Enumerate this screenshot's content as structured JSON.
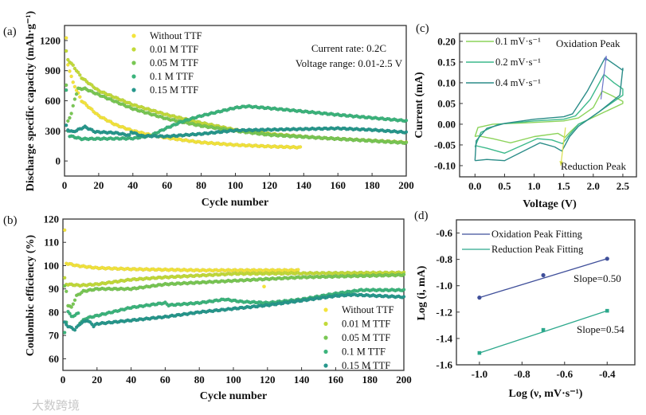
{
  "colors": {
    "without": "#f3e43c",
    "m001": "#c2da3a",
    "m005": "#79c754",
    "m01": "#3cb47c",
    "m015": "#27978c",
    "cv01": "#8cd35a",
    "cv02": "#3cb98b",
    "cv04": "#2a8c88",
    "ox": "#3f4f9a",
    "red": "#2ca88c",
    "ox_arrow": "#6a74c8",
    "red_arrow": "#d8e04a"
  },
  "watermark": "大数跨境",
  "chart_data": [
    {
      "panel_label": "(a)",
      "type": "scatter",
      "title": "",
      "xlabel": "Cycle number",
      "ylabel": "Discharge specific capacity (mAh·g⁻¹)",
      "xlim": [
        0,
        200
      ],
      "ylim": [
        -150,
        1350
      ],
      "xticks": [
        0,
        20,
        40,
        60,
        80,
        100,
        120,
        140,
        160,
        180,
        200
      ],
      "yticks": [
        0,
        300,
        600,
        900,
        1200
      ],
      "legend_position": "top-left",
      "annotations": [
        "Current rate: 0.2C",
        "Voltage range: 0.01-2.5 V"
      ],
      "series": [
        {
          "name": "Without TTF",
          "color_key": "without",
          "points": [
            [
              1,
              1220
            ],
            [
              2,
              960
            ],
            [
              5,
              780
            ],
            [
              10,
              600
            ],
            [
              20,
              450
            ],
            [
              30,
              360
            ],
            [
              40,
              300
            ],
            [
              50,
              260
            ],
            [
              60,
              230
            ],
            [
              80,
              185
            ],
            [
              100,
              160
            ],
            [
              120,
              145
            ],
            [
              138,
              135
            ]
          ]
        },
        {
          "name": "0.01 M TTF",
          "color_key": "m001",
          "points": [
            [
              1,
              1090
            ],
            [
              2,
              1010
            ],
            [
              5,
              950
            ],
            [
              10,
              830
            ],
            [
              20,
              700
            ],
            [
              40,
              560
            ],
            [
              60,
              460
            ],
            [
              80,
              380
            ],
            [
              100,
              310
            ],
            [
              120,
              270
            ],
            [
              150,
              230
            ],
            [
              200,
              185
            ]
          ]
        },
        {
          "name": "0.05 M TTF",
          "color_key": "m005",
          "points": [
            [
              1,
              750
            ],
            [
              2,
              400
            ],
            [
              4,
              470
            ],
            [
              6,
              620
            ],
            [
              8,
              720
            ],
            [
              12,
              720
            ],
            [
              20,
              660
            ],
            [
              40,
              520
            ],
            [
              60,
              420
            ],
            [
              80,
              350
            ],
            [
              100,
              300
            ],
            [
              120,
              260
            ],
            [
              160,
              220
            ],
            [
              200,
              180
            ]
          ]
        },
        {
          "name": "0.1 M TTF",
          "color_key": "m01",
          "points": [
            [
              1,
              700
            ],
            [
              2,
              300
            ],
            [
              3,
              250
            ],
            [
              10,
              220
            ],
            [
              40,
              225
            ],
            [
              50,
              250
            ],
            [
              60,
              330
            ],
            [
              70,
              400
            ],
            [
              80,
              450
            ],
            [
              100,
              530
            ],
            [
              107,
              545
            ],
            [
              130,
              510
            ],
            [
              160,
              460
            ],
            [
              200,
              400
            ]
          ]
        },
        {
          "name": "0.15 M TTF",
          "color_key": "m015",
          "points": [
            [
              1,
              350
            ],
            [
              2,
              310
            ],
            [
              5,
              290
            ],
            [
              12,
              340
            ],
            [
              18,
              290
            ],
            [
              30,
              280
            ],
            [
              38,
              255
            ],
            [
              39,
              290
            ],
            [
              45,
              250
            ],
            [
              60,
              245
            ],
            [
              80,
              270
            ],
            [
              100,
              305
            ],
            [
              130,
              315
            ],
            [
              160,
              325
            ],
            [
              180,
              310
            ],
            [
              200,
              285
            ]
          ]
        }
      ]
    },
    {
      "panel_label": "(b)",
      "type": "scatter",
      "title": "",
      "xlabel": "Cycle number",
      "ylabel": "Coulombic efficiency (%)",
      "xlim": [
        0,
        200
      ],
      "ylim": [
        55,
        120
      ],
      "xticks": [
        0,
        20,
        40,
        60,
        80,
        100,
        120,
        140,
        160,
        180,
        200
      ],
      "yticks": [
        60,
        70,
        80,
        90,
        100,
        110,
        120
      ],
      "legend_position": "bottom-right",
      "series": [
        {
          "name": "Without TTF",
          "color_key": "without",
          "points": [
            [
              1,
              115
            ],
            [
              2,
              101
            ],
            [
              8,
              100
            ],
            [
              20,
              99
            ],
            [
              40,
              98.5
            ],
            [
              80,
              98
            ],
            [
              138,
              98
            ]
          ],
          "outliers": [
            [
              118,
              91
            ]
          ]
        },
        {
          "name": "0.01 M TTF",
          "color_key": "m001",
          "points": [
            [
              1,
              94.5
            ],
            [
              2,
              92
            ],
            [
              10,
              91.5
            ],
            [
              20,
              92
            ],
            [
              40,
              94
            ],
            [
              60,
              95
            ],
            [
              100,
              96.5
            ],
            [
              200,
              97
            ]
          ]
        },
        {
          "name": "0.05 M TTF",
          "color_key": "m005",
          "points": [
            [
              1,
              91
            ],
            [
              2,
              89
            ],
            [
              3,
              83
            ],
            [
              5,
              82
            ],
            [
              8,
              87
            ],
            [
              12,
              89
            ],
            [
              20,
              90
            ],
            [
              40,
              90
            ],
            [
              60,
              92
            ],
            [
              100,
              93.5
            ],
            [
              140,
              95
            ],
            [
              200,
              96
            ]
          ]
        },
        {
          "name": "0.1 M TTF",
          "color_key": "m01",
          "points": [
            [
              1,
              71
            ],
            [
              3,
              80.5
            ],
            [
              5,
              78
            ],
            [
              9,
              79.5
            ],
            [
              10,
              75.5
            ],
            [
              14,
              77.5
            ],
            [
              20,
              78.5
            ],
            [
              40,
              82
            ],
            [
              60,
              84
            ],
            [
              62,
              83
            ],
            [
              80,
              84
            ],
            [
              95,
              85.5
            ],
            [
              105,
              84.5
            ],
            [
              120,
              84
            ],
            [
              140,
              85.5
            ],
            [
              160,
              88
            ],
            [
              175,
              89.5
            ],
            [
              200,
              89.5
            ]
          ]
        },
        {
          "name": "0.15 M TTF",
          "color_key": "m015",
          "points": [
            [
              1,
              75.5
            ],
            [
              3,
              74
            ],
            [
              7,
              72.5
            ],
            [
              10,
              75
            ],
            [
              14,
              76.5
            ],
            [
              17,
              75
            ],
            [
              18,
              74
            ],
            [
              20,
              75
            ],
            [
              40,
              76.5
            ],
            [
              60,
              78
            ],
            [
              80,
              80
            ],
            [
              100,
              81.5
            ],
            [
              120,
              83
            ],
            [
              140,
              85
            ],
            [
              160,
              87
            ],
            [
              170,
              87.5
            ],
            [
              200,
              86.5
            ]
          ]
        }
      ]
    },
    {
      "panel_label": "(c)",
      "type": "line",
      "title": "",
      "xlabel": "Voltage (V)",
      "ylabel": "Current (mA)",
      "xlim": [
        -0.26,
        2.73
      ],
      "ylim": [
        -0.127,
        0.219
      ],
      "xticks": [
        "0.0",
        "0.5",
        "1.0",
        "1.5",
        "2.0",
        "2.5"
      ],
      "yticks": [
        "-0.10",
        "-0.05",
        "0.00",
        "0.05",
        "0.10",
        "0.15",
        "0.20"
      ],
      "legend_position": "top-left",
      "annotations": [
        "Oxidation Peak",
        "Reduction Peak"
      ],
      "series": [
        {
          "name": "0.1 mV·s⁻¹",
          "color_key": "cv01",
          "points": [
            [
              0,
              -0.03
            ],
            [
              0.05,
              -0.008
            ],
            [
              0.3,
              0
            ],
            [
              0.8,
              0.003
            ],
            [
              1.5,
              0.008
            ],
            [
              1.75,
              0.015
            ],
            [
              2.0,
              0.04
            ],
            [
              2.15,
              0.08
            ],
            [
              2.3,
              0.07
            ],
            [
              2.5,
              0.055
            ],
            [
              2.5,
              0.05
            ],
            [
              2.2,
              0.03
            ],
            [
              1.9,
              0.01
            ],
            [
              1.75,
              0
            ],
            [
              1.6,
              -0.02
            ],
            [
              1.52,
              -0.032
            ],
            [
              1.4,
              -0.022
            ],
            [
              1.0,
              -0.03
            ],
            [
              0.6,
              -0.045
            ],
            [
              0.3,
              -0.035
            ],
            [
              0.05,
              -0.028
            ],
            [
              0,
              -0.03
            ]
          ]
        },
        {
          "name": "0.2 mV·s⁻¹",
          "color_key": "cv02",
          "points": [
            [
              0,
              -0.055
            ],
            [
              0.1,
              -0.02
            ],
            [
              0.4,
              0
            ],
            [
              1.0,
              0.008
            ],
            [
              1.5,
              0.012
            ],
            [
              1.7,
              0.02
            ],
            [
              1.95,
              0.06
            ],
            [
              2.18,
              0.12
            ],
            [
              2.35,
              0.1
            ],
            [
              2.5,
              0.085
            ],
            [
              2.5,
              0.07
            ],
            [
              2.2,
              0.04
            ],
            [
              1.9,
              0.01
            ],
            [
              1.75,
              0
            ],
            [
              1.6,
              -0.025
            ],
            [
              1.48,
              -0.047
            ],
            [
              1.3,
              -0.038
            ],
            [
              1.05,
              -0.035
            ],
            [
              0.5,
              -0.07
            ],
            [
              0.2,
              -0.058
            ],
            [
              0.02,
              -0.052
            ],
            [
              0,
              -0.055
            ]
          ]
        },
        {
          "name": "0.4 mV·s⁻¹",
          "color_key": "cv04",
          "points": [
            [
              0,
              -0.088
            ],
            [
              0.02,
              -0.04
            ],
            [
              0.2,
              -0.01
            ],
            [
              0.5,
              0.002
            ],
            [
              1.0,
              0.012
            ],
            [
              1.5,
              0.018
            ],
            [
              1.65,
              0.025
            ],
            [
              1.9,
              0.08
            ],
            [
              2.2,
              0.16
            ],
            [
              2.4,
              0.14
            ],
            [
              2.5,
              0.13
            ],
            [
              2.5,
              0.135
            ],
            [
              2.45,
              0.07
            ],
            [
              2.1,
              0.03
            ],
            [
              1.85,
              0.005
            ],
            [
              1.75,
              -0.005
            ],
            [
              1.6,
              -0.03
            ],
            [
              1.47,
              -0.065
            ],
            [
              1.35,
              -0.055
            ],
            [
              1.1,
              -0.045
            ],
            [
              0.5,
              -0.088
            ],
            [
              0.2,
              -0.085
            ],
            [
              0,
              -0.088
            ]
          ]
        }
      ],
      "arrows": [
        {
          "name": "oxidation-peak-arrow",
          "color_key": "ox_arrow",
          "from": [
            2.13,
            0.06
          ],
          "to": [
            2.22,
            0.165
          ]
        },
        {
          "name": "reduction-peak-arrow",
          "color_key": "red_arrow",
          "from": [
            1.53,
            -0.008
          ],
          "to": [
            1.45,
            -0.1
          ]
        }
      ]
    },
    {
      "panel_label": "(d)",
      "type": "line",
      "title": "",
      "xlabel": "Log (ν, mV·s⁻¹)",
      "ylabel": "Log (i, mA)",
      "xlim": [
        -1.108,
        -0.27
      ],
      "ylim": [
        -1.6,
        -0.5
      ],
      "xticks": [
        "-1.0",
        "-0.8",
        "-0.6",
        "-0.4"
      ],
      "yticks": [
        "-1.6",
        "-1.4",
        "-1.2",
        "-1.0",
        "-0.8",
        "-0.6"
      ],
      "legend_position": "top-left",
      "series": [
        {
          "name": "Oxidation Peak Fitting",
          "color_key": "ox",
          "marker": "circle",
          "points": [
            [
              -1.0,
              -1.09
            ],
            [
              -0.7,
              -0.92
            ],
            [
              -0.4,
              -0.795
            ]
          ],
          "annotation": "Slope=0.50"
        },
        {
          "name": "Reduction Peak Fitting",
          "color_key": "red",
          "marker": "square",
          "points": [
            [
              -1.0,
              -1.51
            ],
            [
              -0.7,
              -1.335
            ],
            [
              -0.4,
              -1.19
            ]
          ],
          "annotation": "Slope=0.54"
        }
      ]
    }
  ]
}
